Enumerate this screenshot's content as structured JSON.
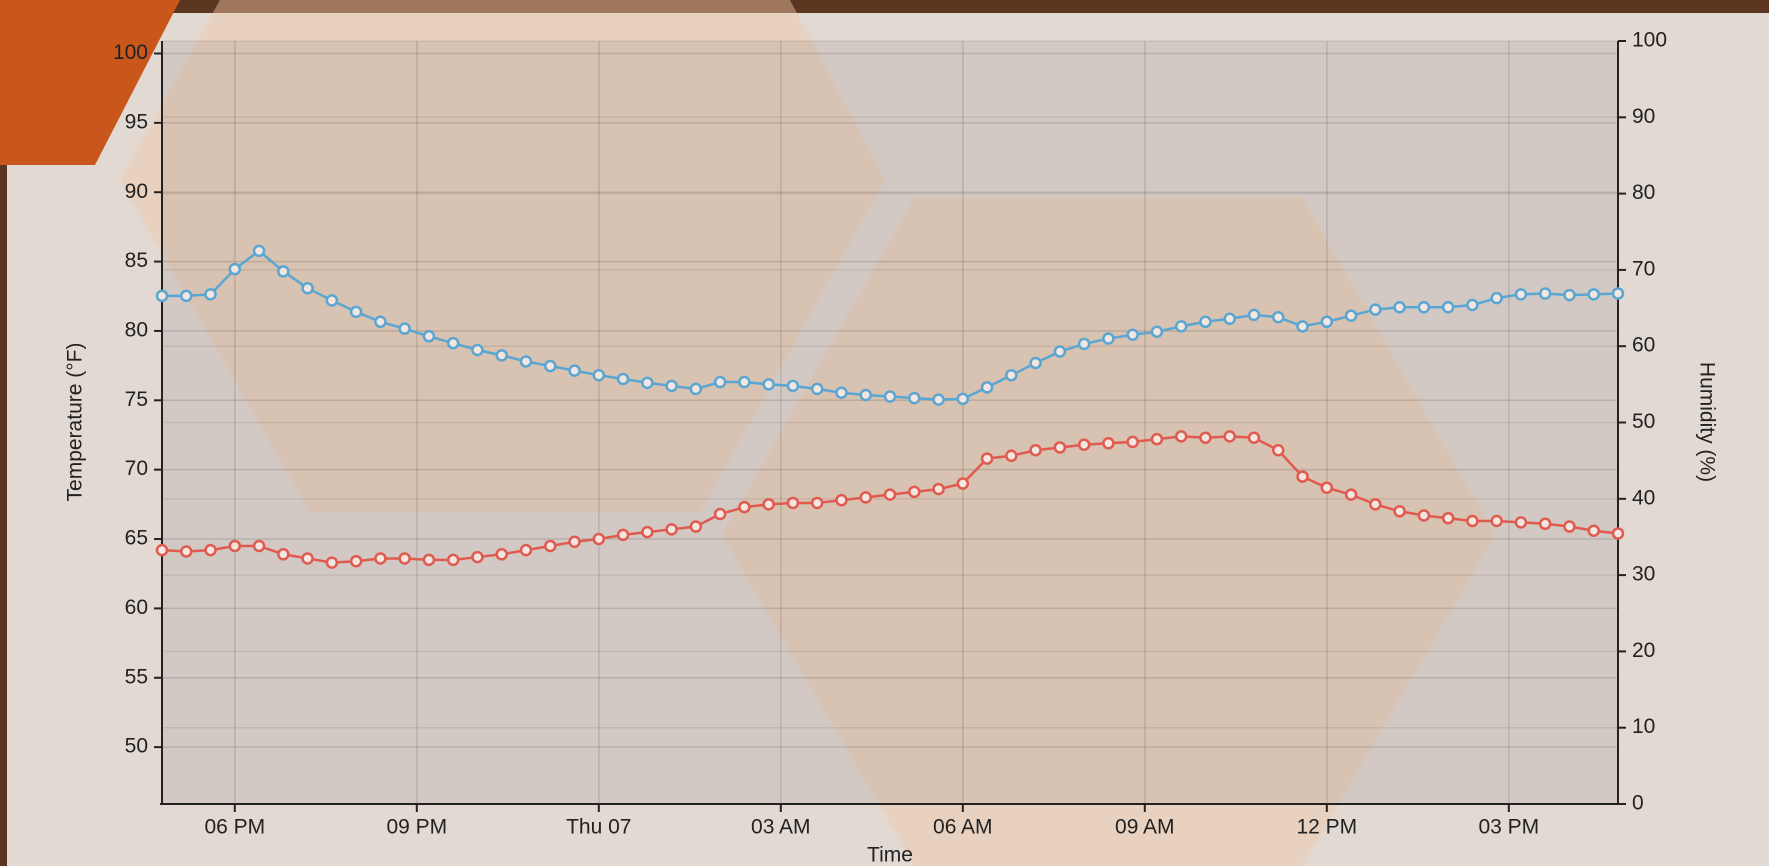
{
  "chart_data": {
    "type": "line",
    "x_label": "Time",
    "y_label": "Temperature (°F)",
    "y2_label": "Humidity (%)",
    "x": [
      16.8,
      17.2,
      17.6,
      18.0,
      18.4,
      18.8,
      19.2,
      19.6,
      20.0,
      20.4,
      20.8,
      21.2,
      21.6,
      22.0,
      22.4,
      22.8,
      23.2,
      23.6,
      24.0,
      24.4,
      24.8,
      25.2,
      25.6,
      26.0,
      26.4,
      26.8,
      27.2,
      27.6,
      28.0,
      28.4,
      28.8,
      29.2,
      29.6,
      30.0,
      30.4,
      30.8,
      31.2,
      31.6,
      32.0,
      32.4,
      32.8,
      33.2,
      33.6,
      34.0,
      34.4,
      34.8,
      35.2,
      35.6,
      36.0,
      36.4,
      36.8,
      37.2,
      37.6,
      38.0,
      38.4,
      38.8,
      39.2,
      39.6,
      40.0,
      40.4,
      40.8
    ],
    "series": [
      {
        "color": "#e05a4f",
        "values": [
          64.2,
          64.1,
          64.2,
          64.5,
          64.5,
          63.9,
          63.6,
          63.3,
          63.4,
          63.6,
          63.6,
          63.5,
          63.5,
          63.7,
          63.9,
          64.2,
          64.5,
          64.8,
          65.0,
          65.3,
          65.5,
          65.7,
          65.9,
          66.8,
          67.3,
          67.5,
          67.6,
          67.6,
          67.8,
          68.0,
          68.2,
          68.4,
          68.6,
          69.0,
          70.8,
          71.0,
          71.4,
          71.6,
          71.8,
          71.9,
          72.0,
          72.2,
          72.4,
          72.3,
          72.4,
          72.3,
          71.4,
          69.5,
          68.7,
          68.2,
          67.5,
          67.0,
          66.7,
          66.5,
          66.3,
          66.3,
          66.2,
          66.1,
          65.9,
          65.6,
          65.4
        ]
      },
      {
        "color": "#5aa6d2",
        "axis": "y2",
        "values": [
          66.6,
          66.6,
          66.8,
          70.1,
          72.5,
          69.8,
          67.6,
          66.0,
          64.5,
          63.2,
          62.3,
          61.3,
          60.4,
          59.5,
          58.8,
          58.0,
          57.4,
          56.8,
          56.2,
          55.7,
          55.2,
          54.8,
          54.4,
          55.3,
          55.3,
          55.0,
          54.8,
          54.4,
          53.9,
          53.6,
          53.4,
          53.2,
          53.0,
          53.1,
          54.6,
          56.2,
          57.8,
          59.3,
          60.3,
          61.0,
          61.5,
          61.9,
          62.6,
          63.2,
          63.6,
          64.1,
          63.8,
          62.6,
          63.2,
          64.0,
          64.8,
          65.1,
          65.1,
          65.1,
          65.4,
          66.3,
          66.8,
          66.9,
          66.7,
          66.8,
          66.9
        ]
      }
    ],
    "xlim": [
      16.8,
      40.8
    ],
    "xticks": [
      {
        "value": 18,
        "label": "06 PM"
      },
      {
        "value": 21,
        "label": "09 PM"
      },
      {
        "value": 24,
        "label": "Thu 07"
      },
      {
        "value": 27,
        "label": "03 AM"
      },
      {
        "value": 30,
        "label": "06 AM"
      },
      {
        "value": 33,
        "label": "09 AM"
      },
      {
        "value": 36,
        "label": "12 PM"
      },
      {
        "value": 39,
        "label": "03 PM"
      }
    ],
    "ylim": [
      45.9,
      100.9
    ],
    "yticks": [
      50,
      55,
      60,
      65,
      70,
      75,
      80,
      85,
      90,
      95,
      100
    ],
    "y2lim": [
      0,
      100
    ],
    "y2ticks": [
      0,
      10,
      20,
      30,
      40,
      50,
      60,
      70,
      80,
      90,
      100
    ],
    "grid": true
  }
}
